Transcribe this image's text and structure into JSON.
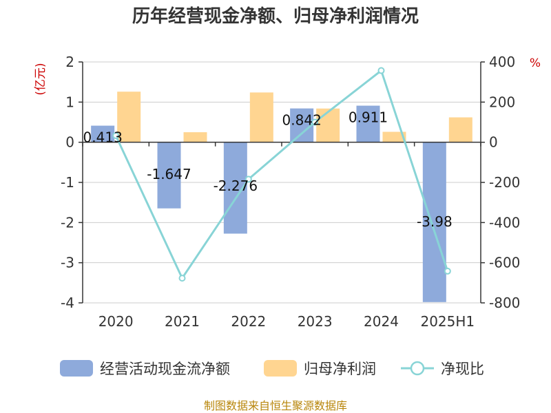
{
  "chart_data": {
    "type": "bar",
    "title": "历年经营现金净额、归母净利润情况",
    "categories": [
      "2020",
      "2021",
      "2022",
      "2023",
      "2024",
      "2025H1"
    ],
    "left_unit": "(亿元)",
    "right_unit": "%",
    "y_left": {
      "min": -4,
      "max": 2,
      "ticks": [
        "2",
        "1",
        "0",
        "-1",
        "-2",
        "-3",
        "-4"
      ]
    },
    "y_right": {
      "min": -800,
      "max": 400,
      "ticks": [
        "400",
        "200",
        "0",
        "-200",
        "-400",
        "-600",
        "-800"
      ]
    },
    "series": [
      {
        "name": "经营活动现金流净额",
        "kind": "bar",
        "axis": "left",
        "color": "#8eaadb",
        "values": [
          0.413,
          -1.647,
          -2.276,
          0.842,
          0.911,
          -3.98
        ],
        "labels": [
          "0.413",
          "-1.647",
          "-2.276",
          "0.842",
          "0.911",
          "-3.98"
        ]
      },
      {
        "name": "归母净利润",
        "kind": "bar",
        "axis": "left",
        "color": "#ffd591",
        "values": [
          1.26,
          0.25,
          1.24,
          0.84,
          0.26,
          0.62
        ]
      },
      {
        "name": "净现比",
        "kind": "line",
        "axis": "right",
        "color": "#88d4d6",
        "values": [
          33,
          -677,
          -184,
          100,
          357,
          -642
        ]
      }
    ],
    "grid": true,
    "legend": "bottom"
  },
  "footer": {
    "source": "制图数据来自恒生聚源数据库"
  }
}
